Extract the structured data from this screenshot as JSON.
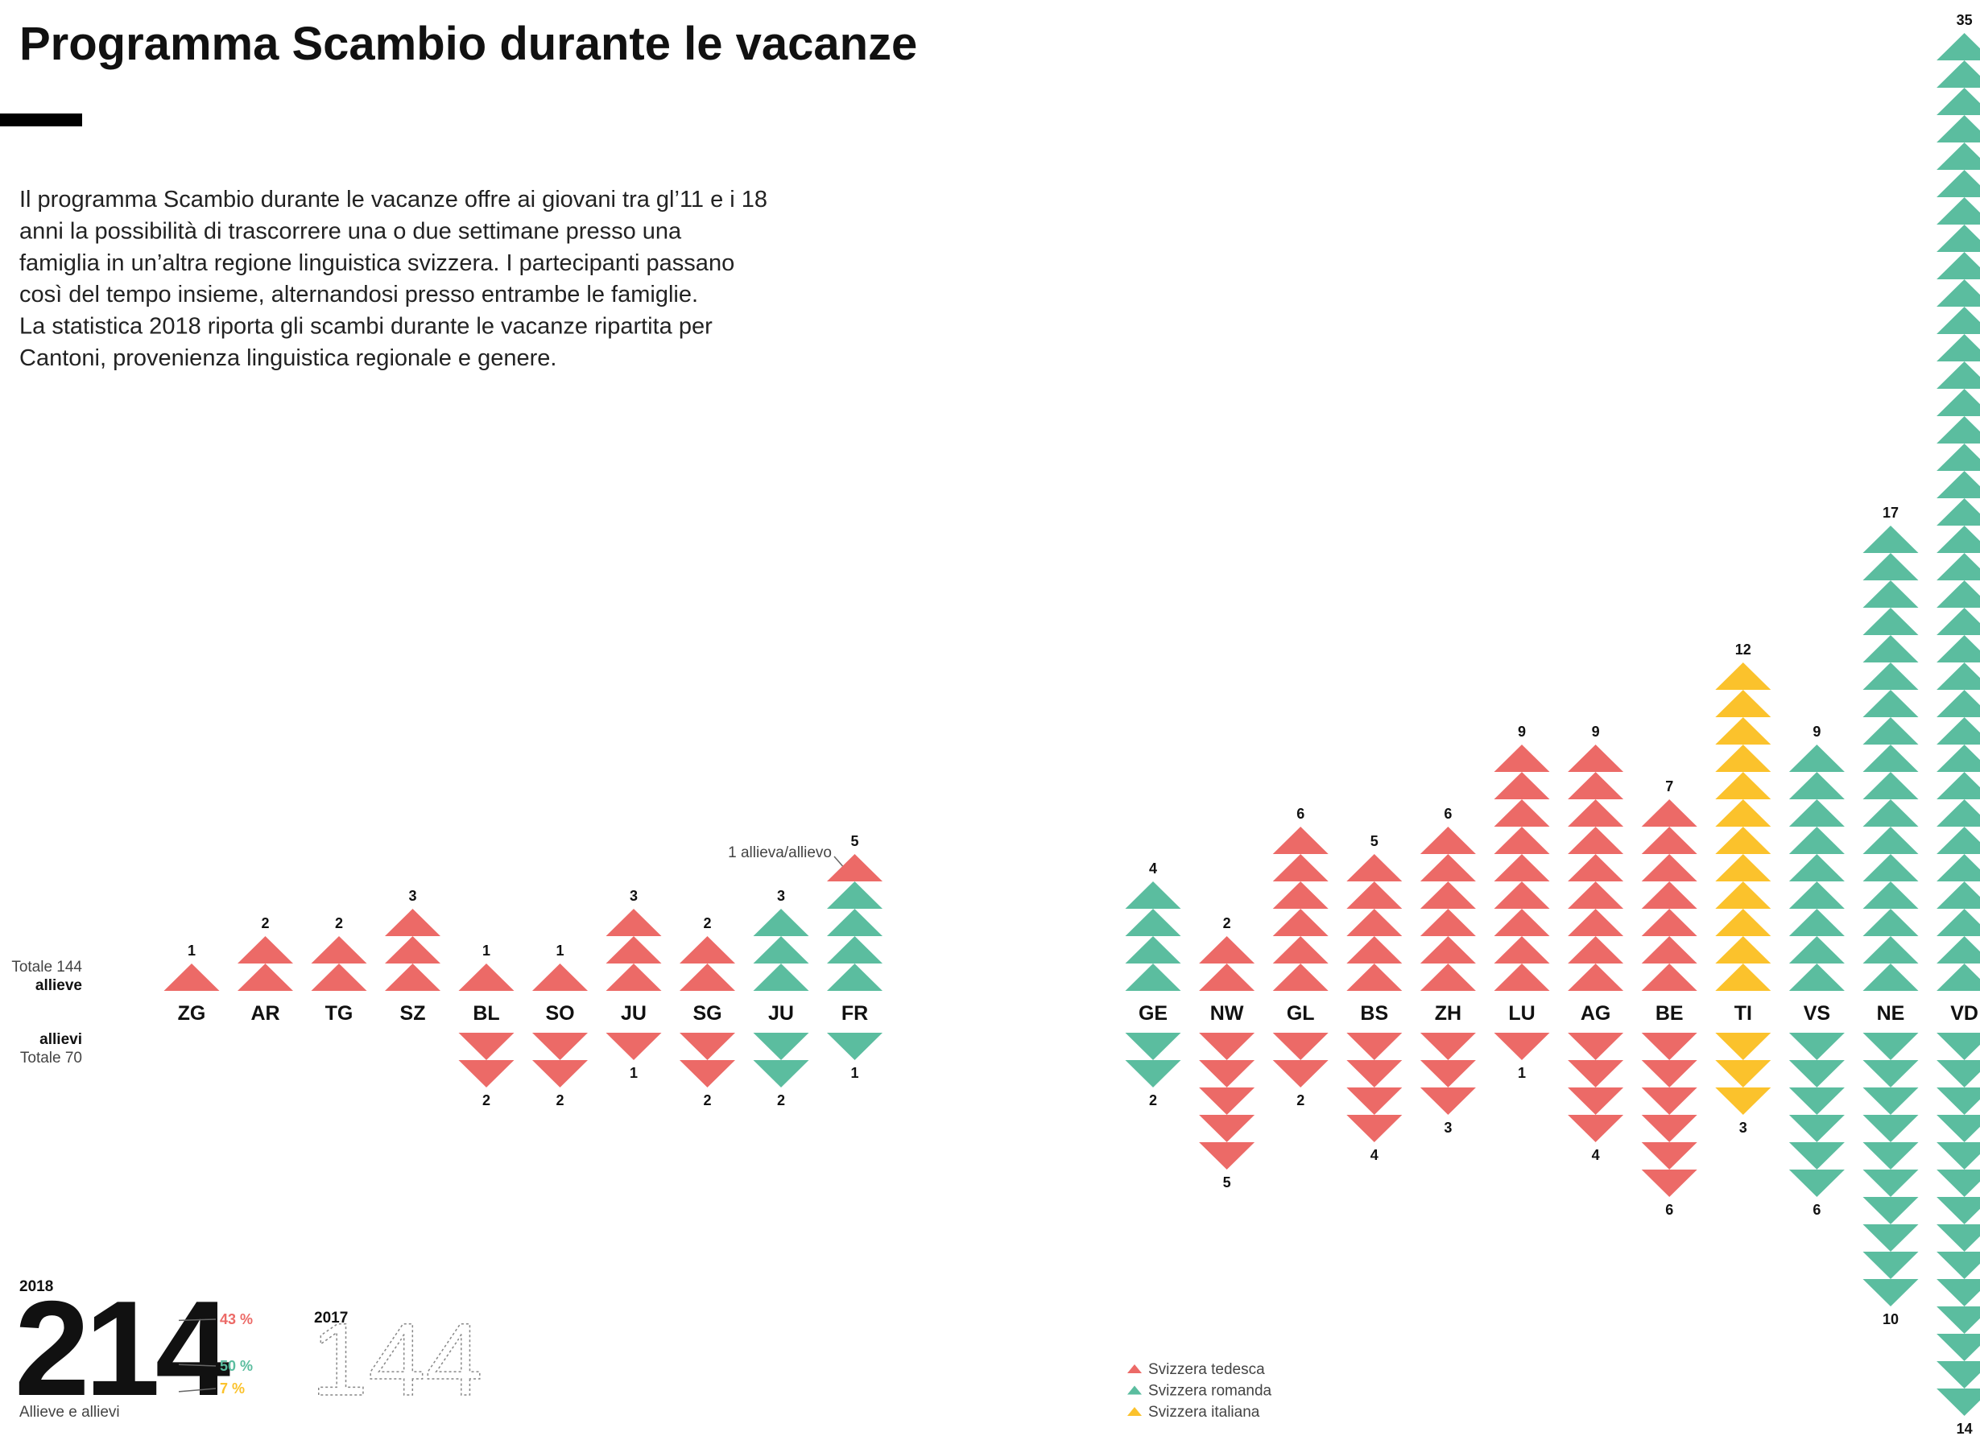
{
  "title": "Programma Scambio durante le vacanze",
  "description": [
    "Il programma Scambio durante le vacanze offre ai giovani tra gl’11 e i 18",
    "anni la possibilità di trascorrere una o due settimane presso una",
    "famiglia in un’altra regione linguistica svizzera. I partecipanti passano",
    "così del tempo insieme, alternandosi presso entrambe le famiglie.",
    "La statistica 2018 riporta gli scambi durante le vacanze ripartita per",
    "Cantoni, provenienza linguistica regionale e genere."
  ],
  "chart_data": {
    "type": "triangle_columns",
    "categories": [
      "ZG",
      "AR",
      "TG",
      "SZ",
      "BL",
      "SO",
      "JU",
      "SG",
      "JU",
      "FR",
      "GE",
      "NW",
      "GL",
      "BS",
      "ZH",
      "LU",
      "AG",
      "BE",
      "TI",
      "VS",
      "NE",
      "VD"
    ],
    "female_total": "Totale 144",
    "female_name": "allieve",
    "male_name": "allievi",
    "male_total": "Totale 70",
    "annotation": "1 allieva/allievo",
    "series": [
      {
        "name": "Svizzera tedesca",
        "color": "#ec6a67",
        "female": [
          1,
          2,
          2,
          3,
          1,
          1,
          3,
          2,
          0,
          1,
          0,
          2,
          6,
          5,
          6,
          9,
          9,
          7,
          0,
          0,
          0,
          0
        ],
        "male": [
          0,
          0,
          0,
          0,
          2,
          2,
          1,
          2,
          0,
          0,
          0,
          5,
          2,
          4,
          3,
          1,
          4,
          6,
          0,
          0,
          0,
          0
        ]
      },
      {
        "name": "Svizzera romanda",
        "color": "#5bbd9f",
        "female": [
          0,
          0,
          0,
          0,
          0,
          0,
          0,
          0,
          3,
          4,
          4,
          0,
          0,
          0,
          0,
          0,
          0,
          0,
          0,
          9,
          17,
          35
        ],
        "male": [
          0,
          0,
          0,
          0,
          0,
          0,
          0,
          0,
          2,
          1,
          2,
          0,
          0,
          0,
          0,
          0,
          0,
          0,
          0,
          6,
          10,
          14
        ]
      },
      {
        "name": "Svizzera italiana",
        "color": "#fbc22c",
        "female": [
          0,
          0,
          0,
          0,
          0,
          0,
          0,
          0,
          0,
          0,
          0,
          0,
          0,
          0,
          0,
          0,
          0,
          0,
          12,
          0,
          0,
          0
        ],
        "male": [
          0,
          0,
          0,
          0,
          0,
          0,
          0,
          0,
          0,
          0,
          0,
          0,
          0,
          0,
          0,
          0,
          0,
          0,
          3,
          0,
          0,
          0
        ]
      }
    ],
    "female_labels": [
      1,
      2,
      2,
      3,
      1,
      1,
      3,
      2,
      3,
      5,
      4,
      2,
      6,
      5,
      6,
      9,
      9,
      7,
      12,
      9,
      17,
      35
    ],
    "male_labels": [
      null,
      null,
      null,
      null,
      2,
      2,
      1,
      2,
      2,
      1,
      2,
      5,
      2,
      4,
      3,
      1,
      4,
      6,
      3,
      6,
      10,
      14
    ]
  },
  "summary": {
    "year": "2018",
    "total": 214,
    "total_label": "Allieve e allievi",
    "shares": [
      {
        "value": 43,
        "label": "43 %",
        "color": "#ec6a67"
      },
      {
        "value": 50,
        "label": "50 %",
        "color": "#5bbd9f"
      },
      {
        "value": 7,
        "label": "7 %",
        "color": "#fbc22c"
      }
    ],
    "previous_year": "2017",
    "previous_total": 144
  }
}
